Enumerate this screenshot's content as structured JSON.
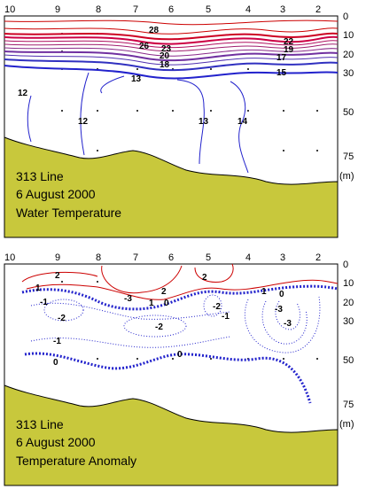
{
  "chart_data": [
    {
      "type": "contour",
      "title_lines": [
        "313 Line",
        "6 August 2000",
        "Water Temperature"
      ],
      "x_ticks": [
        "10",
        "9",
        "8",
        "7",
        "6",
        "5",
        "4",
        "3",
        "2"
      ],
      "depth_ticks": [
        "0",
        "10",
        "20",
        "30",
        "50",
        "75",
        "(m)"
      ],
      "contour_labels": [
        "28",
        "26",
        "23",
        "20",
        "22",
        "18",
        "17",
        "13",
        "19",
        "15",
        "12",
        "12",
        "13",
        "14"
      ],
      "colors": {
        "warm": "#cc0000",
        "hot": "#cc0044",
        "mid": "#8a2a8a",
        "cool": "#2222cc",
        "bottom": "#c8c83c"
      }
    },
    {
      "type": "contour",
      "title_lines": [
        "313 Line",
        "6 August 2000",
        "Temperature Anomaly"
      ],
      "x_ticks": [
        "10",
        "9",
        "8",
        "7",
        "6",
        "5",
        "4",
        "3",
        "2"
      ],
      "depth_ticks": [
        "0",
        "10",
        "20",
        "30",
        "50",
        "75",
        "(m)"
      ],
      "contour_labels": [
        "2",
        "2",
        "2",
        "1",
        "1",
        "1",
        "0",
        "0",
        "0",
        "0",
        "-1",
        "-1",
        "-1",
        "-2",
        "-2",
        "-2",
        "-3",
        "-3",
        "-3"
      ],
      "colors": {
        "positive": "#cc0000",
        "negative": "#2222cc",
        "bottom": "#c8c83c"
      }
    }
  ]
}
